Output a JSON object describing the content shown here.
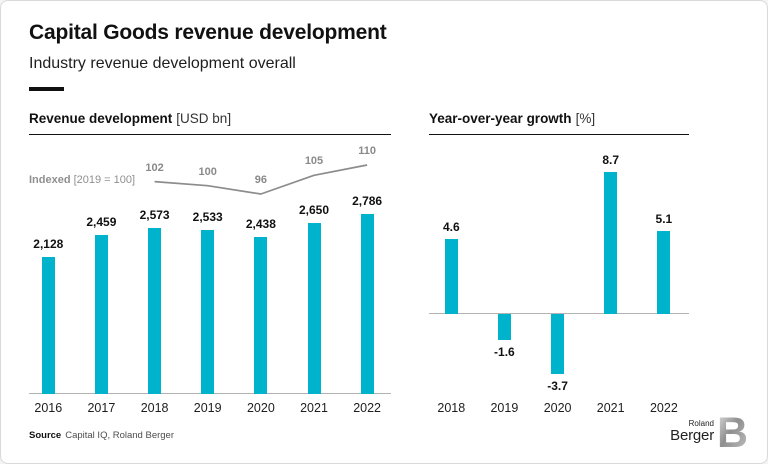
{
  "header": {
    "title": "Capital Goods revenue development",
    "subtitle": "Industry revenue development overall"
  },
  "colors": {
    "bar_teal": "#00b3cc",
    "index_line_gray": "#8c8c8c",
    "index_label_gray": "#8a8a8a",
    "axis_gray": "#b3b3b3"
  },
  "chart_data": [
    {
      "type": "bar",
      "title": "Revenue development",
      "unit": "[USD bn]",
      "categories": [
        "2016",
        "2017",
        "2018",
        "2019",
        "2020",
        "2021",
        "2022"
      ],
      "values": [
        2128,
        2459,
        2573,
        2533,
        2438,
        2650,
        2786
      ],
      "value_labels": [
        "2,128",
        "2,459",
        "2,573",
        "2,533",
        "2,438",
        "2,650",
        "2,786"
      ],
      "ylim": [
        0,
        2786
      ],
      "grid": "off",
      "line_overlay": {
        "type": "line",
        "legend": "Indexed",
        "legend_suffix": "[2019 = 100]",
        "categories": [
          "2018",
          "2019",
          "2020",
          "2021",
          "2022"
        ],
        "values": [
          102,
          100,
          96,
          105,
          110
        ]
      }
    },
    {
      "type": "bar",
      "title": "Year-over-year growth",
      "unit": "[%]",
      "categories": [
        "2018",
        "2019",
        "2020",
        "2021",
        "2022"
      ],
      "values": [
        4.6,
        -1.6,
        -3.7,
        8.7,
        5.1
      ],
      "value_labels": [
        "4.6",
        "-1.6",
        "-3.7",
        "8.7",
        "5.1"
      ],
      "ylim": [
        -3.7,
        8.7
      ],
      "grid": "off"
    }
  ],
  "footer": {
    "source_label": "Source",
    "source_text": "Capital IQ, Roland Berger",
    "logo_top": "Roland",
    "logo_bottom": "Berger"
  }
}
